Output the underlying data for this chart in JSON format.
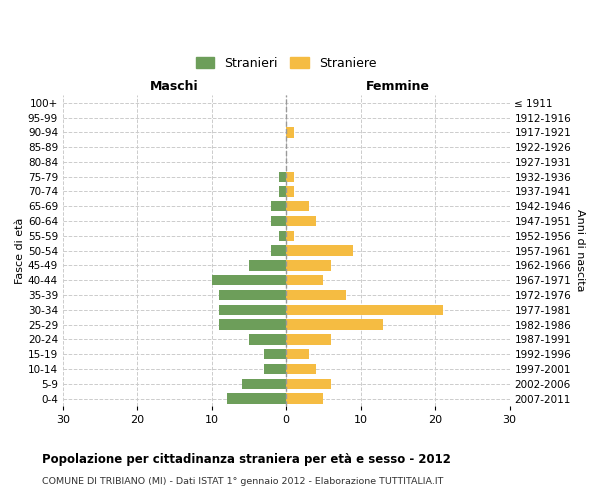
{
  "age_groups": [
    "100+",
    "95-99",
    "90-94",
    "85-89",
    "80-84",
    "75-79",
    "70-74",
    "65-69",
    "60-64",
    "55-59",
    "50-54",
    "45-49",
    "40-44",
    "35-39",
    "30-34",
    "25-29",
    "20-24",
    "15-19",
    "10-14",
    "5-9",
    "0-4"
  ],
  "birth_years": [
    "≤ 1911",
    "1912-1916",
    "1917-1921",
    "1922-1926",
    "1927-1931",
    "1932-1936",
    "1937-1941",
    "1942-1946",
    "1947-1951",
    "1952-1956",
    "1957-1961",
    "1962-1966",
    "1967-1971",
    "1972-1976",
    "1977-1981",
    "1982-1986",
    "1987-1991",
    "1992-1996",
    "1997-2001",
    "2002-2006",
    "2007-2011"
  ],
  "maschi": [
    0,
    0,
    0,
    0,
    0,
    1,
    1,
    2,
    2,
    1,
    2,
    5,
    10,
    9,
    9,
    9,
    5,
    3,
    3,
    6,
    8
  ],
  "femmine": [
    0,
    0,
    1,
    0,
    0,
    1,
    1,
    3,
    4,
    1,
    9,
    6,
    5,
    8,
    21,
    13,
    6,
    3,
    4,
    6,
    5
  ],
  "maschi_color": "#6d9e5a",
  "femmine_color": "#f5bc42",
  "grid_color": "#cccccc",
  "center_line_color": "#999999",
  "title": "Popolazione per cittadinanza straniera per età e sesso - 2012",
  "subtitle": "COMUNE DI TRIBIANO (MI) - Dati ISTAT 1° gennaio 2012 - Elaborazione TUTTITALIA.IT",
  "legend_stranieri": "Stranieri",
  "legend_straniere": "Straniere",
  "xlabel_left": "Maschi",
  "xlabel_right": "Femmine",
  "ylabel_left": "Fasce di età",
  "ylabel_right": "Anni di nascita",
  "xlim": 30,
  "background_color": "#ffffff",
  "bar_height": 0.7
}
